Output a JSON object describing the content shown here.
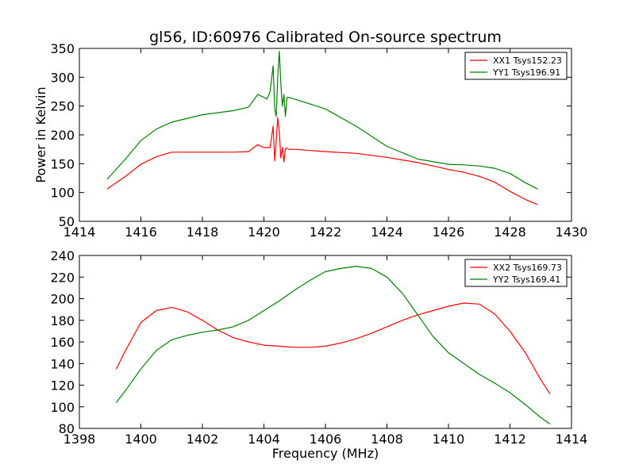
{
  "colors": {
    "xx": "#ff0000",
    "yy": "#008000"
  },
  "chart_data": [
    {
      "type": "line",
      "title": "gl56, ID:60976 Calibrated On-source spectrum",
      "xlabel": "",
      "ylabel": "Power in Kelvin",
      "xlim": [
        1414,
        1430
      ],
      "ylim": [
        50,
        350
      ],
      "xticks": [
        1414,
        1416,
        1418,
        1420,
        1422,
        1424,
        1426,
        1428,
        1430
      ],
      "yticks": [
        50,
        100,
        150,
        200,
        250,
        300,
        350
      ],
      "legend": "top-right",
      "series": [
        {
          "name": "XX1 Tsys152.23",
          "color": "#ff0000",
          "x": [
            1414.9,
            1415.5,
            1416.0,
            1416.5,
            1417.0,
            1418.0,
            1419.0,
            1419.5,
            1419.8,
            1420.0,
            1420.2,
            1420.3,
            1420.35,
            1420.4,
            1420.45,
            1420.5,
            1420.55,
            1420.6,
            1420.65,
            1420.7,
            1420.75,
            1420.8,
            1421.0,
            1422.0,
            1423.0,
            1424.0,
            1425.0,
            1426.0,
            1426.5,
            1427.0,
            1427.5,
            1428.0,
            1428.5,
            1428.9
          ],
          "y": [
            106,
            128,
            149,
            162,
            170,
            170,
            170,
            171,
            183,
            178,
            178,
            215,
            155,
            190,
            230,
            205,
            160,
            178,
            153,
            176,
            177,
            175,
            175,
            171,
            168,
            161,
            152,
            140,
            135,
            128,
            118,
            102,
            88,
            79
          ]
        },
        {
          "name": "YY1 Tsys196.91",
          "color": "#008000",
          "x": [
            1414.9,
            1415.5,
            1416.0,
            1416.5,
            1417.0,
            1418.0,
            1419.0,
            1419.5,
            1419.8,
            1420.0,
            1420.1,
            1420.2,
            1420.3,
            1420.35,
            1420.4,
            1420.45,
            1420.5,
            1420.55,
            1420.6,
            1420.65,
            1420.7,
            1420.75,
            1420.8,
            1421.0,
            1422.0,
            1423.0,
            1424.0,
            1425.0,
            1426.0,
            1426.5,
            1427.0,
            1427.5,
            1428.0,
            1428.5,
            1428.9
          ],
          "y": [
            123,
            158,
            190,
            210,
            222,
            235,
            242,
            248,
            270,
            265,
            262,
            275,
            320,
            245,
            232,
            300,
            345,
            290,
            250,
            270,
            232,
            265,
            265,
            262,
            245,
            215,
            180,
            158,
            149,
            148,
            146,
            142,
            133,
            117,
            106
          ]
        }
      ]
    },
    {
      "type": "line",
      "title": "",
      "xlabel": "Frequency (MHz)",
      "ylabel": "",
      "xlim": [
        1398,
        1414
      ],
      "ylim": [
        80,
        240
      ],
      "xticks": [
        1398,
        1400,
        1402,
        1404,
        1406,
        1408,
        1410,
        1412,
        1414
      ],
      "yticks": [
        80,
        100,
        120,
        140,
        160,
        180,
        200,
        220,
        240
      ],
      "legend": "top-right",
      "series": [
        {
          "name": "XX2 Tsys169.73",
          "color": "#ff0000",
          "x": [
            1399.2,
            1399.5,
            1400.0,
            1400.5,
            1401.0,
            1401.5,
            1402.0,
            1402.5,
            1403.0,
            1403.5,
            1404.0,
            1404.5,
            1405.0,
            1405.5,
            1406.0,
            1406.5,
            1407.0,
            1407.5,
            1408.0,
            1408.5,
            1409.0,
            1409.5,
            1410.0,
            1410.5,
            1411.0,
            1411.5,
            1412.0,
            1412.5,
            1413.0,
            1413.3
          ],
          "y": [
            135,
            152,
            178,
            189,
            192,
            188,
            180,
            171,
            164,
            160,
            157,
            156,
            155,
            155,
            156,
            159,
            163,
            168,
            174,
            180,
            185,
            189,
            193,
            196,
            195,
            186,
            170,
            150,
            125,
            112
          ]
        },
        {
          "name": "YY2 Tsys169.41",
          "color": "#008000",
          "x": [
            1399.2,
            1399.5,
            1400.0,
            1400.5,
            1401.0,
            1401.5,
            1402.0,
            1402.5,
            1403.0,
            1403.5,
            1404.0,
            1404.5,
            1405.0,
            1405.5,
            1406.0,
            1406.5,
            1407.0,
            1407.5,
            1408.0,
            1408.5,
            1409.0,
            1409.5,
            1410.0,
            1410.5,
            1411.0,
            1411.5,
            1412.0,
            1412.5,
            1413.0,
            1413.3
          ],
          "y": [
            104,
            115,
            135,
            152,
            162,
            166,
            169,
            171,
            174,
            180,
            189,
            198,
            208,
            217,
            225,
            228,
            230,
            228,
            220,
            205,
            185,
            165,
            150,
            140,
            130,
            122,
            113,
            102,
            90,
            84
          ]
        }
      ]
    }
  ]
}
